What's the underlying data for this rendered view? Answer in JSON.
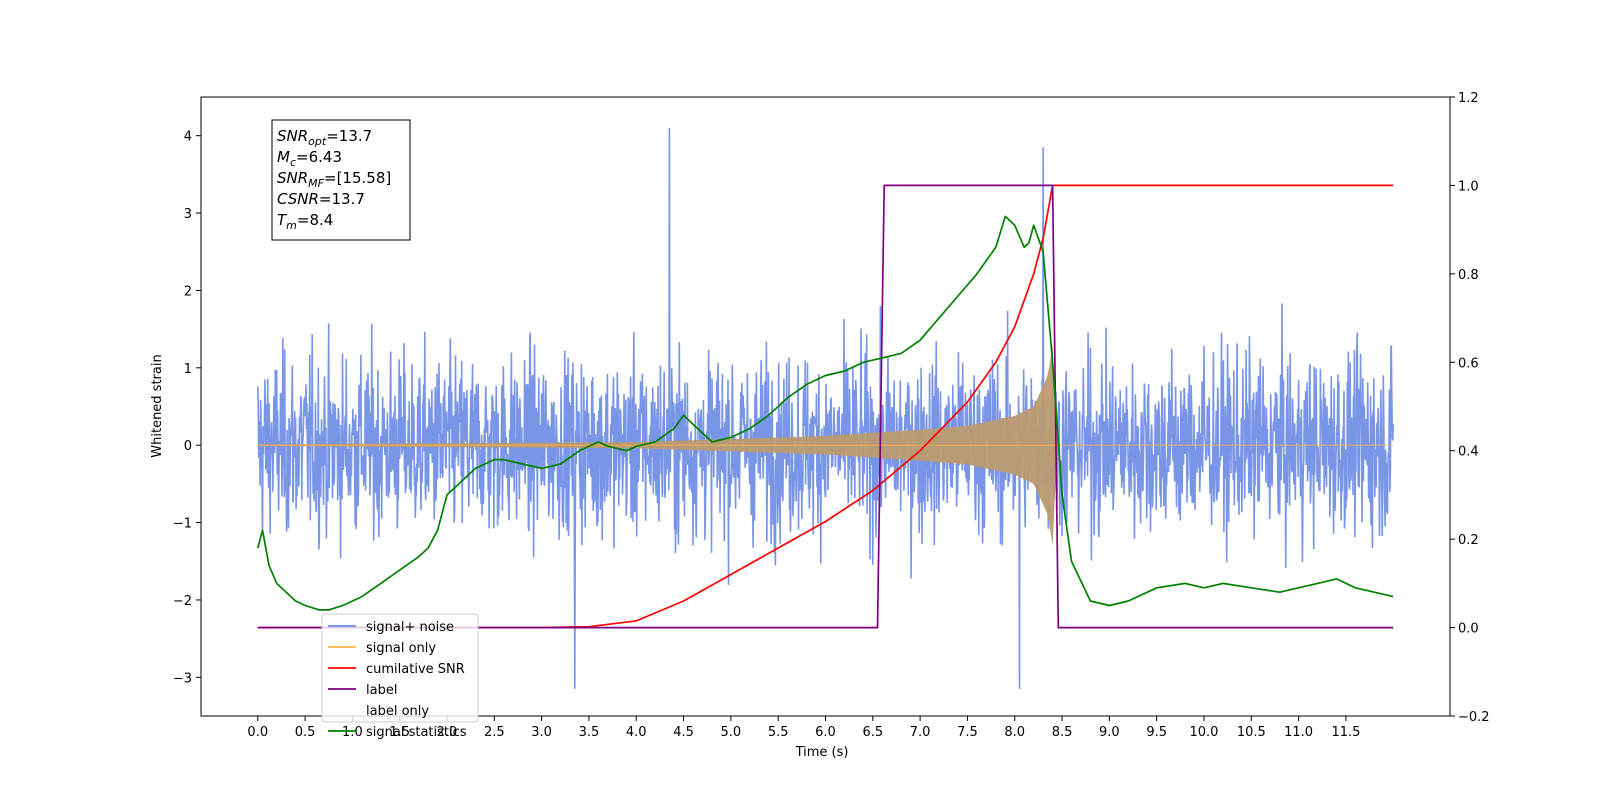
{
  "chart_data": {
    "type": "line",
    "xlabel": "Time (s)",
    "ylabel_left": "Whitened strain",
    "ylabel_right": "",
    "xlim": [
      -0.6,
      12.6
    ],
    "ylim_left": [
      -3.5,
      4.5
    ],
    "ylim_right": [
      -0.2,
      1.2
    ],
    "x_ticks": [
      0.0,
      0.5,
      1.0,
      1.5,
      2.0,
      2.5,
      3.0,
      3.5,
      4.0,
      4.5,
      5.0,
      5.5,
      6.0,
      6.5,
      7.0,
      7.5,
      8.0,
      8.5,
      9.0,
      9.5,
      10.0,
      10.5,
      11.0,
      11.5
    ],
    "x_tick_labels": [
      "0.0",
      "0.5",
      "1.0",
      "1.5",
      "2.0",
      "2.5",
      "3.0",
      "3.5",
      "4.0",
      "4.5",
      "5.0",
      "5.5",
      "6.0",
      "6.5",
      "7.0",
      "7.5",
      "8.0",
      "8.5",
      "9.0",
      "9.5",
      "10.0",
      "10.5",
      "11.0",
      "11.5"
    ],
    "y_left_ticks": [
      -3,
      -2,
      -1,
      0,
      1,
      2,
      3,
      4
    ],
    "y_left_tick_labels": [
      "−3",
      "−2",
      "−1",
      "0",
      "1",
      "2",
      "3",
      "4"
    ],
    "y_right_ticks": [
      -0.2,
      0.0,
      0.2,
      0.4,
      0.6,
      0.8,
      1.0,
      1.2
    ],
    "y_right_tick_labels": [
      "−0.2",
      "0.0",
      "0.2",
      "0.4",
      "0.6",
      "0.8",
      "1.0",
      "1.2"
    ],
    "annotation": {
      "lines": [
        {
          "base": "SNR",
          "sub": "opt",
          "value": "=13.7"
        },
        {
          "base": "M",
          "sub": "c",
          "value": "=6.43"
        },
        {
          "base": "SNR",
          "sub": "MF",
          "value": "=[15.58]"
        },
        {
          "base": "CSNR",
          "sub": "",
          "value": "=13.7"
        },
        {
          "base": "T",
          "sub": "m",
          "value": "=8.4"
        }
      ]
    },
    "noise_envelope": {
      "x_start": 0.0,
      "x_end": 12.0,
      "typical_amplitude": 1.3,
      "max_value": 4.1,
      "min_value": -3.15
    },
    "merger_time": 8.4,
    "series": [
      {
        "name": "signal+ noise",
        "axis": "left",
        "color": "#6a8ae6",
        "style": "noise"
      },
      {
        "name": "signal only",
        "axis": "left",
        "color": "#ffb347",
        "fill_color": "#bb9a70",
        "style": "chirp",
        "x_range": [
          0.0,
          12.0
        ],
        "envelope_points": [
          [
            0.0,
            0.01
          ],
          [
            4.0,
            0.04
          ],
          [
            6.0,
            0.12
          ],
          [
            7.0,
            0.2
          ],
          [
            7.5,
            0.25
          ],
          [
            8.0,
            0.38
          ],
          [
            8.2,
            0.5
          ],
          [
            8.35,
            0.9
          ],
          [
            8.4,
            1.3
          ]
        ]
      },
      {
        "name": "cumilative SNR",
        "axis": "right",
        "color": "#ff0000",
        "style": "line",
        "x": [
          0.0,
          3.0,
          3.5,
          4.0,
          4.5,
          5.0,
          5.5,
          6.0,
          6.5,
          7.0,
          7.5,
          7.8,
          8.0,
          8.2,
          8.3,
          8.4,
          12.0
        ],
        "y": [
          0.0,
          0.0,
          0.002,
          0.015,
          0.06,
          0.12,
          0.18,
          0.24,
          0.31,
          0.4,
          0.51,
          0.6,
          0.68,
          0.8,
          0.88,
          1.0,
          1.0
        ]
      },
      {
        "name": "label",
        "axis": "right",
        "color": "#800080",
        "style": "line",
        "x": [
          0.0,
          6.55,
          6.62,
          8.4,
          8.46,
          12.0
        ],
        "y": [
          0.0,
          0.0,
          1.0,
          1.0,
          0.0,
          0.0
        ]
      },
      {
        "name": "label only",
        "axis": "right",
        "color": "#ffffff",
        "style": "hidden"
      },
      {
        "name": "signal statistics",
        "axis": "right",
        "color": "#008000",
        "style": "line",
        "x": [
          0.0,
          0.05,
          0.12,
          0.2,
          0.3,
          0.4,
          0.5,
          0.65,
          0.75,
          0.9,
          1.1,
          1.3,
          1.5,
          1.7,
          1.8,
          1.9,
          2.0,
          2.1,
          2.3,
          2.5,
          2.6,
          2.8,
          3.0,
          3.2,
          3.4,
          3.6,
          3.7,
          3.9,
          4.0,
          4.2,
          4.4,
          4.5,
          4.6,
          4.8,
          5.0,
          5.2,
          5.4,
          5.6,
          5.8,
          6.0,
          6.2,
          6.4,
          6.6,
          6.8,
          7.0,
          7.2,
          7.4,
          7.6,
          7.8,
          7.9,
          8.0,
          8.1,
          8.15,
          8.2,
          8.3,
          8.4,
          8.5,
          8.6,
          8.8,
          9.0,
          9.2,
          9.5,
          9.8,
          10.0,
          10.2,
          10.5,
          10.8,
          11.0,
          11.2,
          11.4,
          11.6,
          11.8,
          12.0
        ],
        "y": [
          0.18,
          0.22,
          0.14,
          0.1,
          0.08,
          0.06,
          0.05,
          0.04,
          0.04,
          0.05,
          0.07,
          0.1,
          0.13,
          0.16,
          0.18,
          0.22,
          0.3,
          0.32,
          0.36,
          0.38,
          0.38,
          0.37,
          0.36,
          0.37,
          0.4,
          0.42,
          0.41,
          0.4,
          0.41,
          0.42,
          0.45,
          0.48,
          0.46,
          0.42,
          0.43,
          0.45,
          0.48,
          0.52,
          0.55,
          0.57,
          0.58,
          0.6,
          0.61,
          0.62,
          0.65,
          0.7,
          0.75,
          0.8,
          0.86,
          0.93,
          0.91,
          0.86,
          0.87,
          0.91,
          0.85,
          0.6,
          0.3,
          0.15,
          0.06,
          0.05,
          0.06,
          0.09,
          0.1,
          0.09,
          0.1,
          0.09,
          0.08,
          0.09,
          0.1,
          0.11,
          0.09,
          0.08,
          0.07
        ]
      }
    ],
    "legend": {
      "placement": "lower-left",
      "entries": [
        {
          "label": "signal+ noise",
          "color": "#6a8ae6"
        },
        {
          "label": "signal only",
          "color": "#ffb347"
        },
        {
          "label": "cumilative SNR",
          "color": "#ff0000"
        },
        {
          "label": "label",
          "color": "#800080"
        },
        {
          "label": "label only",
          "color": "#ffffff"
        },
        {
          "label": "signal statistics",
          "color": "#008000"
        }
      ]
    }
  }
}
